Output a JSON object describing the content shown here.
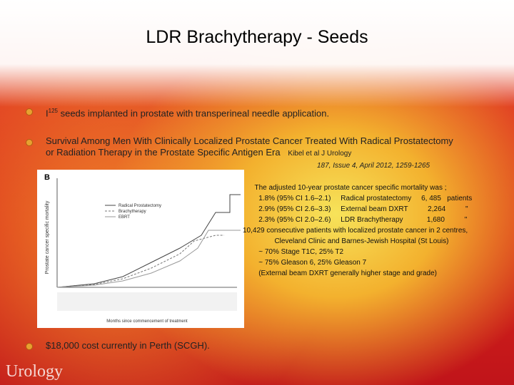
{
  "header": {
    "title": "LDR Brachytherapy - Seeds"
  },
  "bullets": [
    {
      "symbol": "I",
      "superscript": "125",
      "text": " seeds implanted in prostate with transperineal needle application."
    },
    {
      "line1": "Survival Among Men With Clinically Localized Prostate Cancer Treated With Radical Prostatectomy",
      "line2": "or Radiation Therapy in the Prostate Specific Antigen Era",
      "citation": "Kibel et al   J Urology",
      "reference": "187, Issue 4, April 2012, 1259-1265"
    },
    {
      "text": "$18,000 cost currently in Perth (SCGH)."
    }
  ],
  "figure": {
    "panel": "B",
    "y_label": "Prostate cancer specific mortality",
    "legend": [
      "Radical Prostatectomy",
      "Brachytherapy",
      "EBRT"
    ],
    "x_label": "Months since commencement of treatment"
  },
  "summary": [
    "      The adjusted 10-year prostate cancer specific mortality was ;",
    "        1.8% (95% CI 1.6–2.1)     Radical prostatectomy     6, 485   patients",
    "        2.9% (95% CI 2.6–3.3)     External beam DXRT          2,264          \"",
    "        2.3% (95% CI 2.0–2.6)     LDR Brachytherapy            1,680          \"",
    "10,429 consecutive patients with localized prostate cancer in 2 centres,",
    "                Cleveland Clinic and Barnes-Jewish Hospital (St Louis)",
    "        ~ 70% Stage T1C, 25% T2",
    "        ~ 75% Gleason 6, 25% Gleason 7",
    "        (External beam DXRT generally higher stage and grade)"
  ],
  "footer": {
    "brand": "Urology"
  }
}
